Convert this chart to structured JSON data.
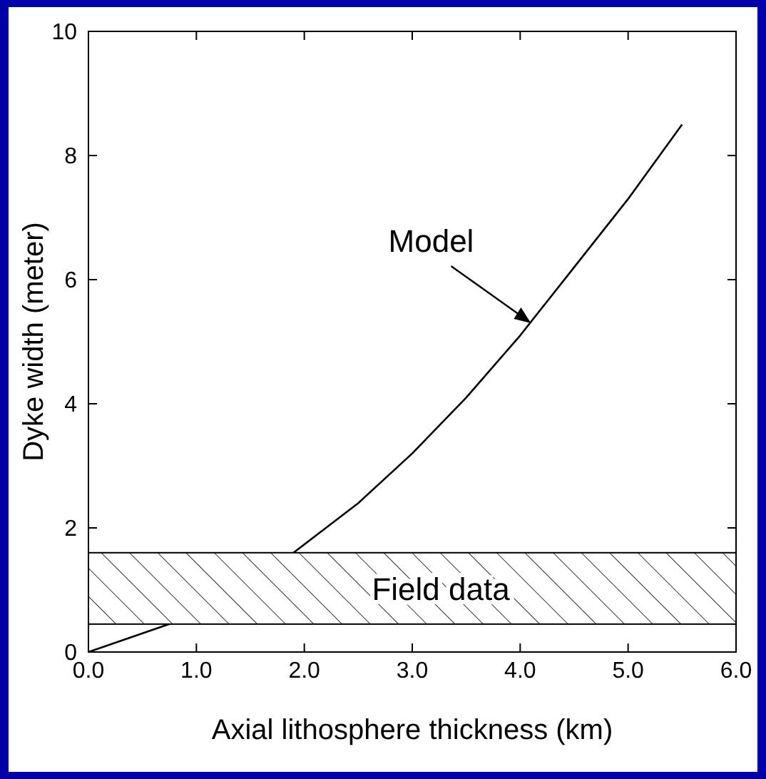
{
  "chart_data": {
    "type": "line",
    "xlabel": "Axial lithosphere thickness (km)",
    "ylabel": "Dyke width (meter)",
    "x": [
      0,
      0.75,
      1.3,
      1.9,
      2.5,
      3.0,
      3.5,
      4.0,
      4.5,
      5.0,
      5.5
    ],
    "series": [
      {
        "color": "#000000",
        "values": [
          0,
          0.45,
          null,
          1.6,
          2.4,
          3.2,
          4.1,
          5.1,
          6.2,
          7.3,
          8.5
        ]
      }
    ],
    "xlim": [
      0,
      6
    ],
    "ylim": [
      0,
      10
    ],
    "xticks": [
      {
        "value": 0,
        "label": "0.0"
      },
      {
        "value": 1,
        "label": "1.0"
      },
      {
        "value": 2,
        "label": "2.0"
      },
      {
        "value": 3,
        "label": "3.0"
      },
      {
        "value": 4,
        "label": "4.0"
      },
      {
        "value": 5,
        "label": "5.0"
      },
      {
        "value": 6,
        "label": "6.0"
      }
    ],
    "yticks": [
      0,
      2,
      4,
      6,
      8,
      10
    ],
    "bands": [
      {
        "axis": "y",
        "from": 0.45,
        "to": 1.6,
        "label": "Field data"
      }
    ],
    "annotations": [
      {
        "text": "Model",
        "x": 4.1,
        "y": 5.3
      }
    ],
    "marker": "none",
    "line_style": "solid"
  }
}
